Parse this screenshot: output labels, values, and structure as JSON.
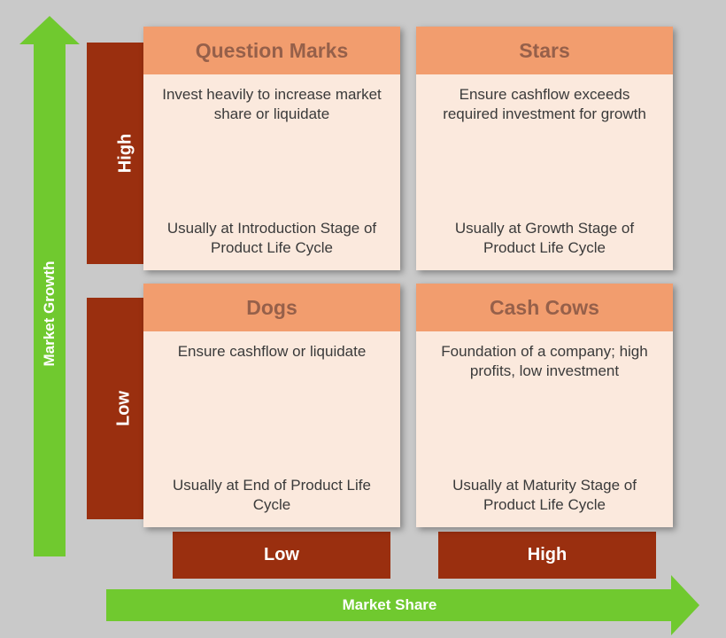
{
  "type": "matrix-2x2",
  "name": "BCG Growth-Share Matrix",
  "background_color": "#c9c9c9",
  "axes": {
    "y": {
      "label": "Market Growth",
      "color": "#70c92f",
      "text_color": "#ffffff",
      "bands": [
        {
          "key": "high",
          "label": "High"
        },
        {
          "key": "low",
          "label": "Low"
        }
      ],
      "band_color": "#9a2f0f"
    },
    "x": {
      "label": "Market Share",
      "color": "#70c92f",
      "text_color": "#ffffff",
      "bands": [
        {
          "key": "low",
          "label": "Low"
        },
        {
          "key": "high",
          "label": "High"
        }
      ],
      "band_color": "#9a2f0f"
    }
  },
  "card_style": {
    "header_bg": "#f29d6e",
    "header_text_color": "#96604a",
    "body_bg": "#fbe9dd",
    "body_text_color": "#3a3a3a",
    "title_fontsize": 23,
    "body_fontsize": 17
  },
  "quadrants": {
    "tl": {
      "title": "Question Marks",
      "line1": "Invest heavily to increase market share or liquidate",
      "line2": "Usually at Introduction Stage of Product Life Cycle"
    },
    "tr": {
      "title": "Stars",
      "line1": "Ensure cashflow exceeds required investment for growth",
      "line2": "Usually at Growth Stage of Product Life Cycle"
    },
    "bl": {
      "title": "Dogs",
      "line1": "Ensure cashflow or liquidate",
      "line2": "Usually at End of Product Life Cycle"
    },
    "br": {
      "title": "Cash Cows",
      "line1": "Foundation of a company; high profits, low investment",
      "line2": "Usually at Maturity Stage of Product Life Cycle"
    }
  }
}
